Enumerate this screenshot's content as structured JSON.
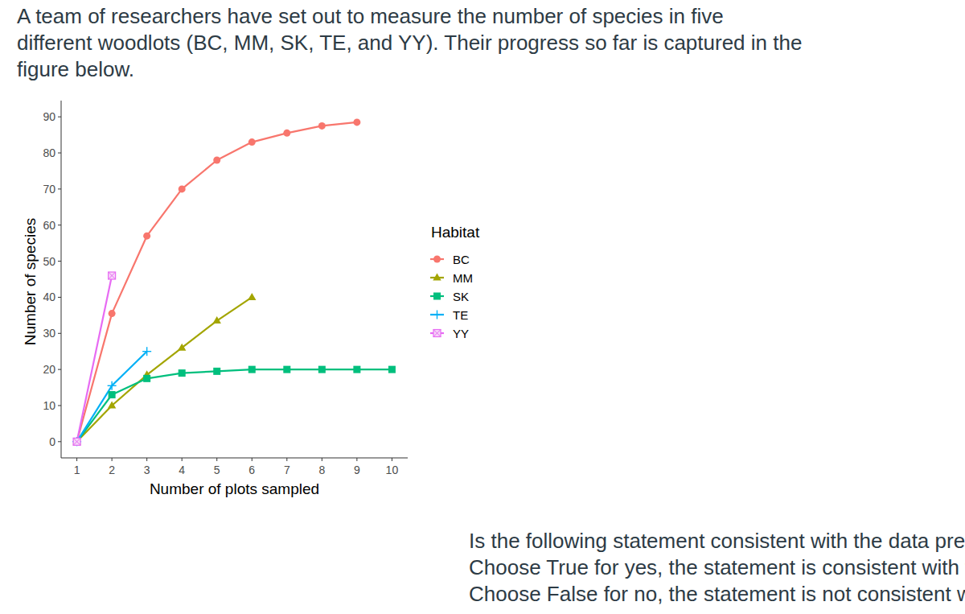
{
  "intro": [
    "A team of researchers have set out to measure the number of species in five",
    "different woodlots (BC, MM, SK, TE, and YY). Their progress so far is captured in the",
    "figure below."
  ],
  "question": [
    "Is the following statement consistent with the data presented in the above graph?",
    "Choose True for yes, the statement is consistent with the graph.",
    "Choose False for no, the statement is not consistent with the graph."
  ],
  "chart_data": {
    "type": "line",
    "x_label": "Number of plots sampled",
    "y_label": "Number of species",
    "legend_title": "Habitat",
    "legend": "right",
    "grid": false,
    "x": [
      1,
      2,
      3,
      4,
      5,
      6,
      7,
      8,
      9,
      10
    ],
    "xlim": [
      0.55,
      10.45
    ],
    "xticks": [
      1,
      2,
      3,
      4,
      5,
      6,
      7,
      8,
      9,
      10
    ],
    "ylim": [
      -4.5,
      94.5
    ],
    "yticks": [
      0,
      10,
      20,
      30,
      40,
      50,
      60,
      70,
      80,
      90
    ],
    "series": [
      {
        "name": "BC",
        "color": "#F8766D",
        "marker": "circle",
        "values": [
          0,
          35.5,
          57,
          70,
          78,
          83,
          85.5,
          87.5,
          88.5,
          null
        ]
      },
      {
        "name": "MM",
        "color": "#A3A500",
        "marker": "triangle",
        "values": [
          0,
          10,
          18.5,
          26,
          33.5,
          40,
          null,
          null,
          null,
          null
        ]
      },
      {
        "name": "SK",
        "color": "#00BF7D",
        "marker": "square",
        "values": [
          0,
          13,
          17.5,
          19,
          19.5,
          20,
          20,
          20,
          20,
          20
        ]
      },
      {
        "name": "TE",
        "color": "#00B0F6",
        "marker": "plus",
        "values": [
          0,
          15.5,
          25,
          null,
          null,
          null,
          null,
          null,
          null,
          null
        ]
      },
      {
        "name": "YY",
        "color": "#E76BF3",
        "marker": "square-cross",
        "values": [
          0,
          46,
          null,
          null,
          null,
          null,
          null,
          null,
          null,
          null
        ]
      }
    ]
  }
}
